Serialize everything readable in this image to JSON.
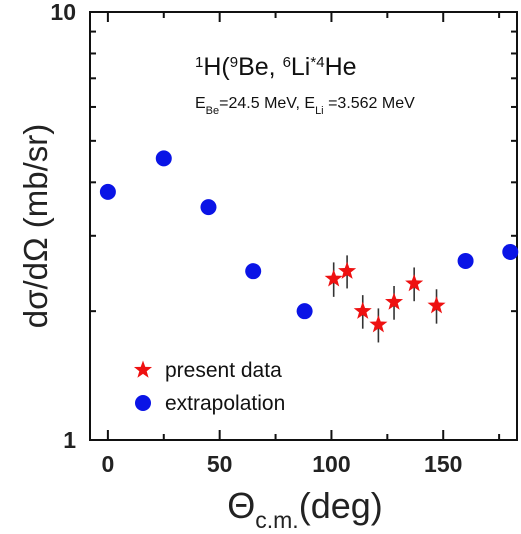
{
  "chart_data": {
    "type": "scatter",
    "title": "",
    "xlabel": "Θ",
    "xlabel_sub": "c.m.",
    "xlabel_unit": "(deg)",
    "ylabel": "dσ/dΩ (mb/sr)",
    "xlim": [
      -8,
      183
    ],
    "ylim": [
      1,
      10
    ],
    "y_scale": "log",
    "x_ticks": [
      0,
      50,
      100,
      150
    ],
    "y_tick_labels": [
      "1",
      "10"
    ],
    "reaction_label": {
      "parts": [
        {
          "t": "1",
          "sup": true
        },
        {
          "t": "H(",
          "sup": false
        },
        {
          "t": "9",
          "sup": true
        },
        {
          "t": "Be, ",
          "sup": false
        },
        {
          "t": "6",
          "sup": true
        },
        {
          "t": "Li",
          "sup": false
        },
        {
          "t": "(*)",
          "sup": true
        },
        {
          "t": "4",
          "sup": true
        },
        {
          "t": "He",
          "sup": false
        }
      ]
    },
    "energy_label": {
      "e1": "E",
      "e1_sub": "Be",
      "e1_val": "=24.5 MeV, ",
      "e2": "E",
      "e2_sub": "Li",
      "e2_val": " =3.562 MeV"
    },
    "legend_position": "bottom-left",
    "series": [
      {
        "name": "present data",
        "marker": "star",
        "color": "#ee1111",
        "points": [
          {
            "x": 101,
            "y": 2.38,
            "err": 0.22
          },
          {
            "x": 107,
            "y": 2.48,
            "err": 0.22
          },
          {
            "x": 114,
            "y": 2.0,
            "err": 0.18
          },
          {
            "x": 121,
            "y": 1.86,
            "err": 0.17
          },
          {
            "x": 128,
            "y": 2.1,
            "err": 0.19
          },
          {
            "x": 137,
            "y": 2.32,
            "err": 0.21
          },
          {
            "x": 147,
            "y": 2.06,
            "err": 0.19
          }
        ]
      },
      {
        "name": "extrapolation",
        "marker": "circle",
        "color": "#0a14e6",
        "points": [
          {
            "x": 0,
            "y": 3.8
          },
          {
            "x": 25,
            "y": 4.55
          },
          {
            "x": 45,
            "y": 3.5
          },
          {
            "x": 65,
            "y": 2.48
          },
          {
            "x": 88,
            "y": 2.0
          },
          {
            "x": 160,
            "y": 2.62
          },
          {
            "x": 180,
            "y": 2.75
          }
        ]
      }
    ]
  }
}
